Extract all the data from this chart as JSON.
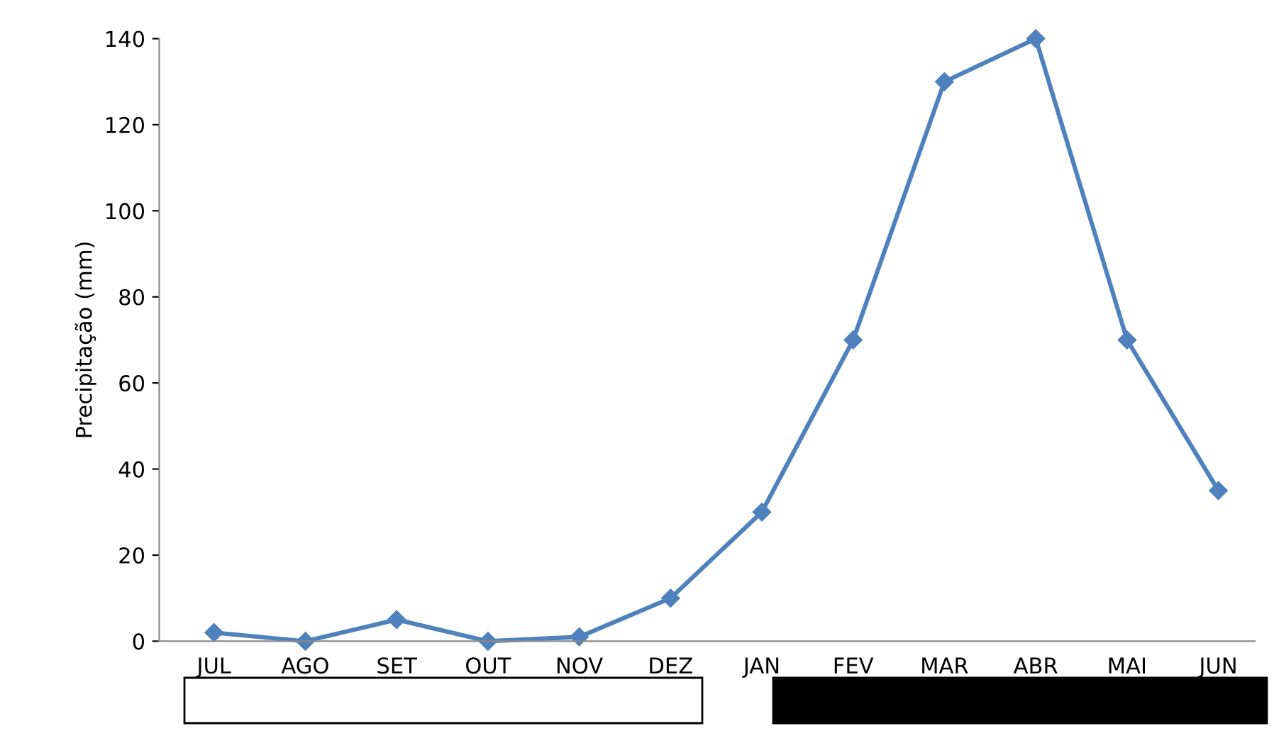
{
  "chart_data": {
    "type": "line",
    "ylabel": "Precipitação (mm)",
    "categories": [
      "JUL",
      "AGO",
      "SET",
      "OUT",
      "NOV",
      "DEZ",
      "JAN",
      "FEV",
      "MAR",
      "ABR",
      "MAI",
      "JUN"
    ],
    "series": [
      {
        "color": "#4f81bd",
        "values": [
          2,
          0,
          5,
          0,
          1,
          10,
          30,
          70,
          130,
          140,
          70,
          35
        ]
      }
    ],
    "ylim": [
      0,
      140
    ],
    "yticks": [
      0,
      20,
      40,
      60,
      80,
      100,
      120,
      140
    ],
    "marker": "diamond",
    "line_style": "solid",
    "grid": false,
    "legend": false
  }
}
